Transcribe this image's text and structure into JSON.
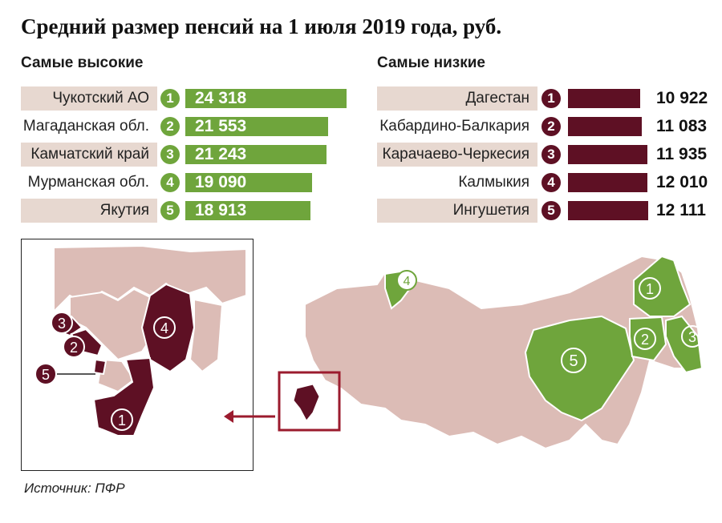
{
  "title": "Средний размер пенсий на 1 июля 2019 года, руб.",
  "highest": {
    "heading": "Самые высокие",
    "items": [
      {
        "rank": "1",
        "region": "Чукотский АО",
        "value_label": "24 318",
        "value": 24318
      },
      {
        "rank": "2",
        "region": "Магаданская обл.",
        "value_label": "21 553",
        "value": 21553
      },
      {
        "rank": "3",
        "region": "Камчатский край",
        "value_label": "21 243",
        "value": 21243
      },
      {
        "rank": "4",
        "region": "Мурманская обл.",
        "value_label": "19 090",
        "value": 19090
      },
      {
        "rank": "5",
        "region": "Якутия",
        "value_label": "18 913",
        "value": 18913
      }
    ]
  },
  "lowest": {
    "heading": "Самые низкие",
    "items": [
      {
        "rank": "1",
        "region": "Дагестан",
        "value_label": "10 922",
        "value": 10922
      },
      {
        "rank": "2",
        "region": "Кабардино-Балкария",
        "value_label": "11 083",
        "value": 11083
      },
      {
        "rank": "3",
        "region": "Карачаево-Черкесия",
        "value_label": "11 935",
        "value": 11935
      },
      {
        "rank": "4",
        "region": "Калмыкия",
        "value_label": "12 010",
        "value": 12010
      },
      {
        "rank": "5",
        "region": "Ингушетия",
        "value_label": "12 111",
        "value": 12111
      }
    ]
  },
  "chart_data": [
    {
      "type": "bar",
      "title": "Самые высокие",
      "categories": [
        "Чукотский АО",
        "Магаданская обл.",
        "Камчатский край",
        "Мурманская обл.",
        "Якутия"
      ],
      "values": [
        24318,
        21553,
        21243,
        19090,
        18913
      ]
    },
    {
      "type": "bar",
      "title": "Самые низкие",
      "categories": [
        "Дагестан",
        "Кабардино-Балкария",
        "Карачаево-Черкесия",
        "Калмыкия",
        "Ингушетия"
      ],
      "values": [
        10922,
        11083,
        11935,
        12010,
        12111
      ]
    }
  ],
  "map_markers": {
    "main": [
      "1",
      "2",
      "3",
      "4",
      "5"
    ],
    "inset": [
      "1",
      "2",
      "3",
      "4",
      "5"
    ]
  },
  "colors": {
    "high": "#6fa53c",
    "low": "#5e1024",
    "region_fill": "#d9b7b1",
    "label_bg": "#e7d8d0",
    "frame": "#9b1b2e"
  },
  "source": "Источник: ПФР"
}
